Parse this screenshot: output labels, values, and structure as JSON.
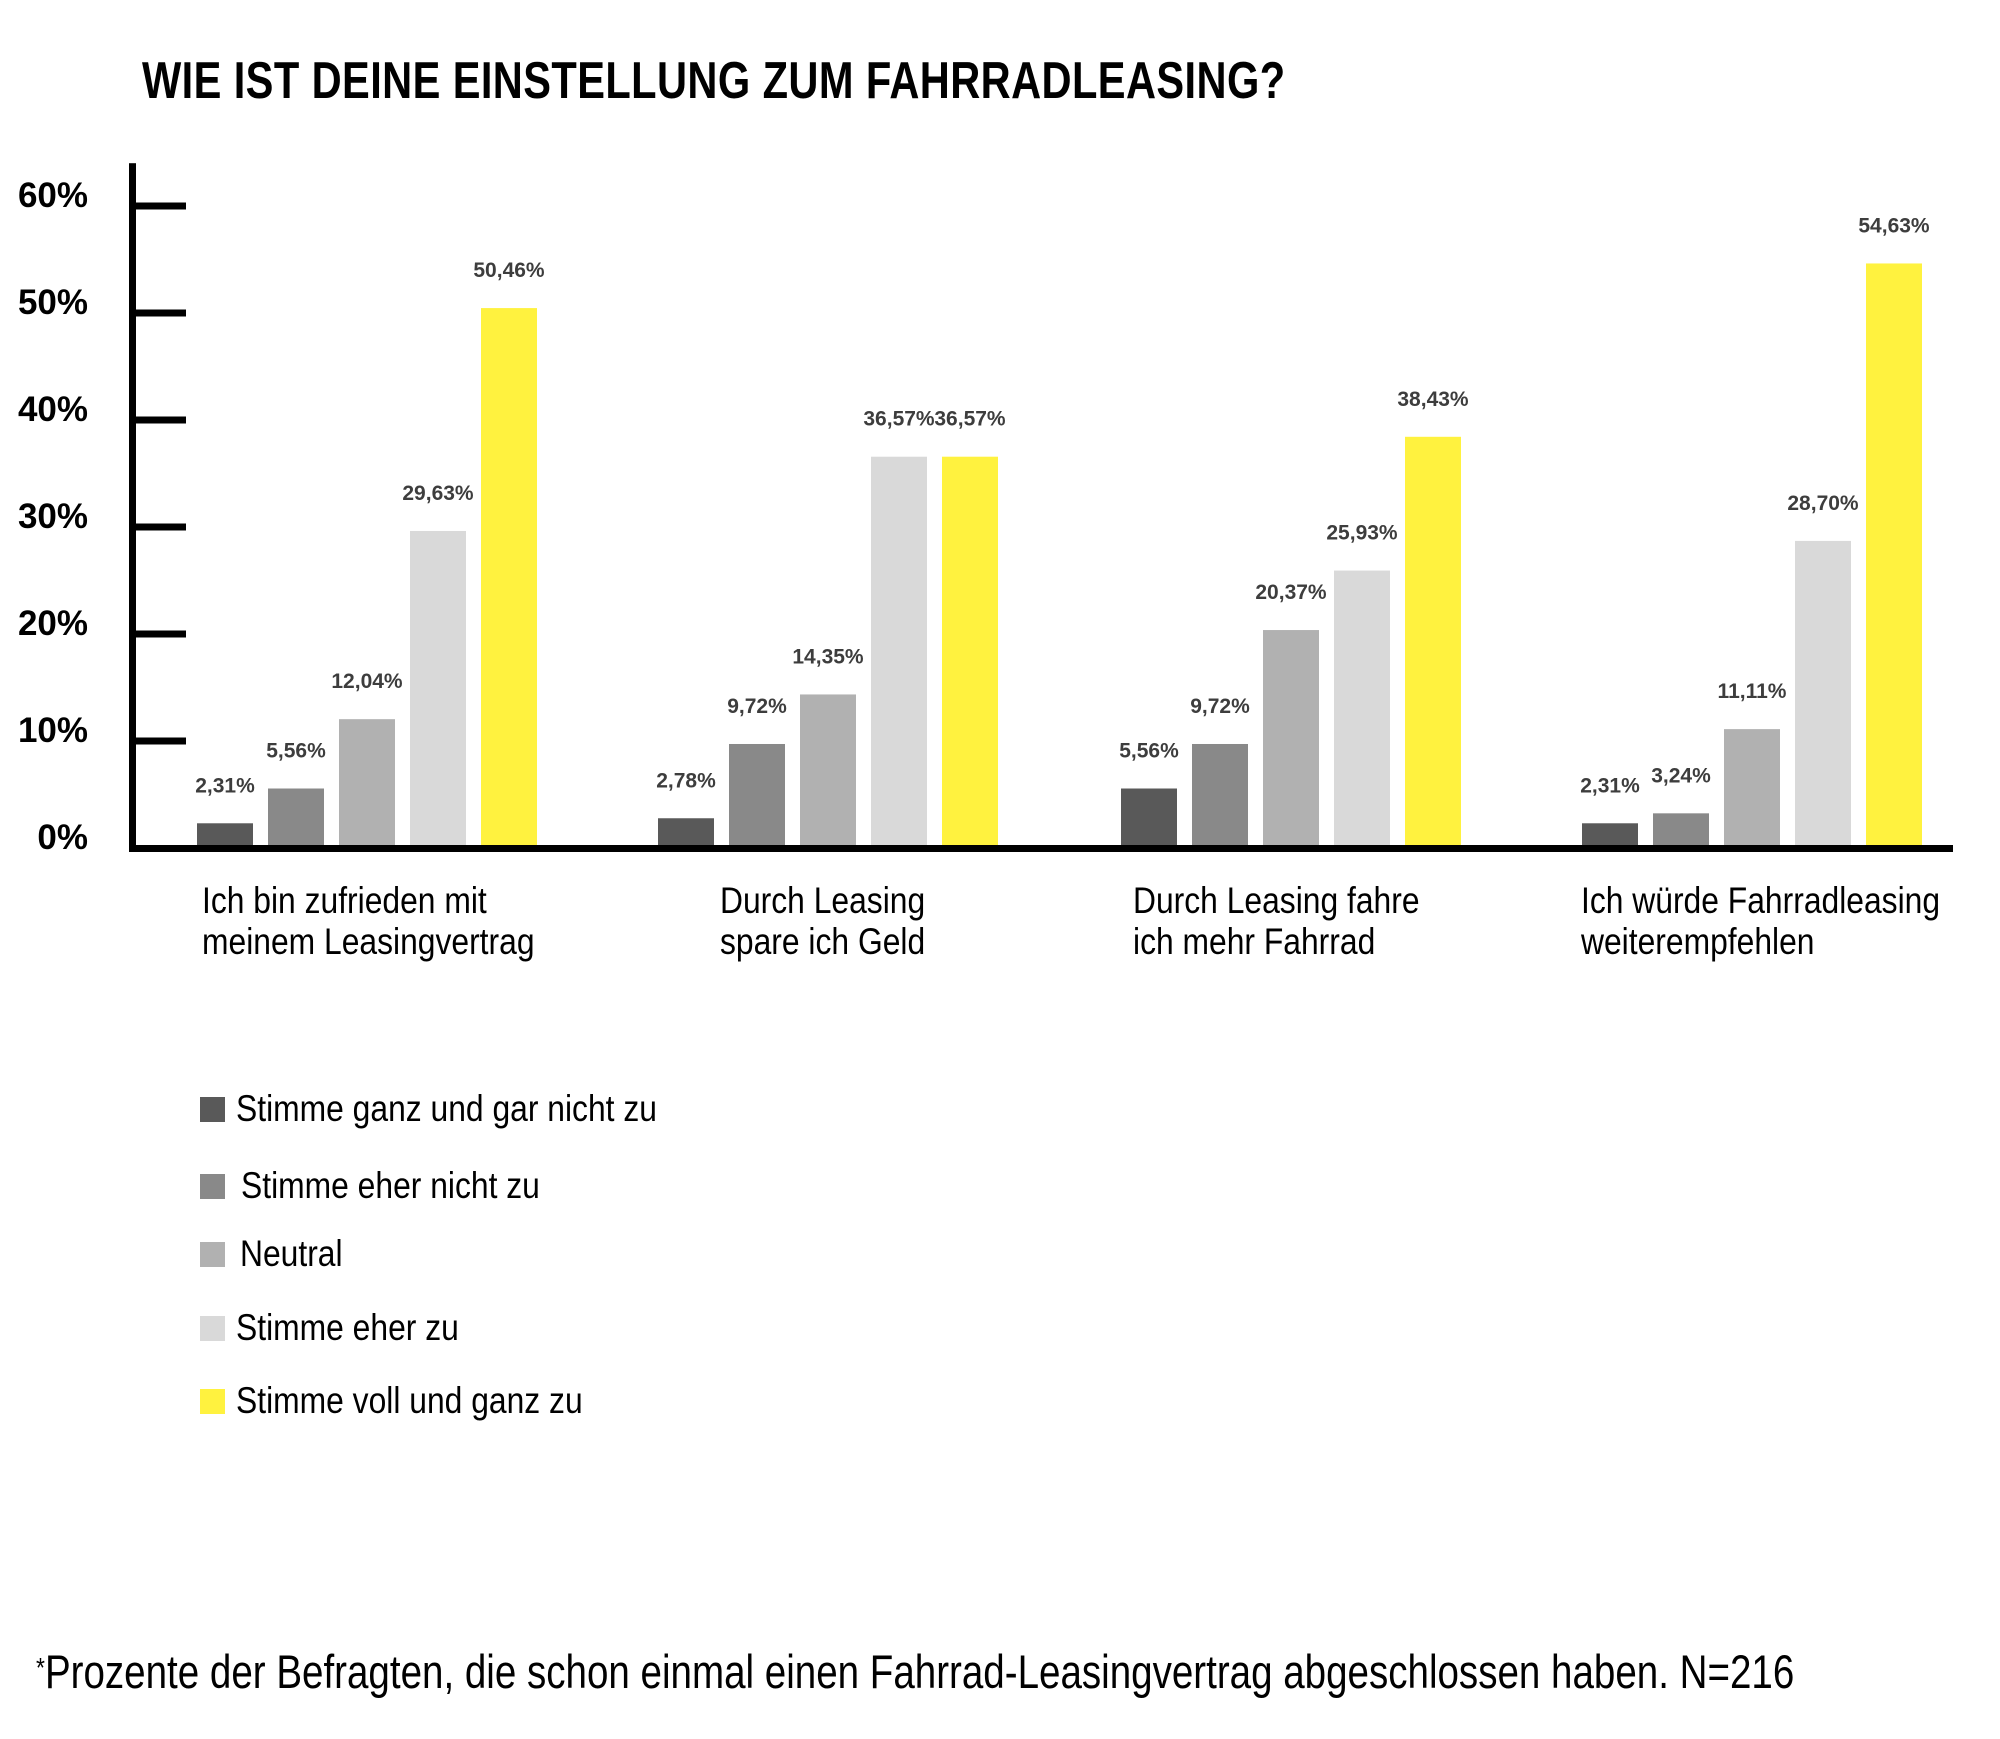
{
  "chart_data": {
    "type": "bar",
    "title": "WIE IST DEINE EINSTELLUNG ZUM FAHRRADLEASING?",
    "xlabel": "",
    "ylabel": "",
    "categories": [
      "Ich bin zufrieden mit\nmeinem Leasingvertrag",
      "Durch Leasing\nspare ich Geld",
      "Durch Leasing fahre\nich mehr Fahrrad",
      "Ich würde Fahrradleasing\nweiterempfehlen"
    ],
    "ylim": [
      0,
      64
    ],
    "yticks": [
      0,
      10,
      20,
      30,
      40,
      50,
      60
    ],
    "ytick_labels": [
      "0%",
      "10%",
      "20%",
      "30%",
      "40%",
      "50%",
      "60%"
    ],
    "grid": false,
    "legend_position": "bottom-left",
    "series": [
      {
        "name": "Stimme ganz und gar nicht zu",
        "color": "#595959",
        "values": [
          2.31,
          2.78,
          5.56,
          2.31
        ],
        "labels": [
          "2,31%",
          "2,78%",
          "5,56%",
          "2,31%"
        ]
      },
      {
        "name": "Stimme eher nicht zu",
        "color": "#898989",
        "values": [
          5.56,
          9.72,
          9.72,
          3.24
        ],
        "labels": [
          "5,56%",
          "9,72%",
          "9,72%",
          "3,24%"
        ]
      },
      {
        "name": "Neutral",
        "color": "#b1b1b1",
        "values": [
          12.04,
          14.35,
          20.37,
          11.11
        ],
        "labels": [
          "12,04%",
          "14,35%",
          "20,37%",
          "11,11%"
        ]
      },
      {
        "name": "Stimme eher zu",
        "color": "#d9d9d9",
        "values": [
          29.63,
          36.57,
          25.93,
          28.7
        ],
        "labels": [
          "29,63%",
          "36,57%",
          "25,93%",
          "28,70%"
        ]
      },
      {
        "name": "Stimme voll und ganz zu",
        "color": "#fff23f",
        "values": [
          50.46,
          36.57,
          38.43,
          54.63
        ],
        "labels": [
          "50,46%",
          "36,57%",
          "38,43%",
          "54,63%"
        ]
      }
    ]
  },
  "footnote": {
    "marker": "*",
    "text": "Prozente der Befragten, die schon einmal einen Fahrrad-Leasingvertrag abgeschlossen haben. N=216"
  }
}
